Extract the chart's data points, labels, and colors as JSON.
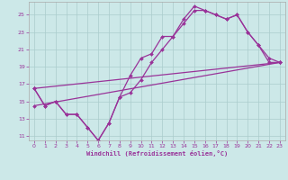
{
  "xlabel": "Windchill (Refroidissement éolien,°C)",
  "background_color": "#cce8e8",
  "grid_color": "#aacccc",
  "line_color": "#993399",
  "xlim": [
    -0.5,
    23.5
  ],
  "ylim": [
    10.5,
    26.5
  ],
  "yticks": [
    11,
    13,
    15,
    17,
    19,
    21,
    23,
    25
  ],
  "xticks": [
    0,
    1,
    2,
    3,
    4,
    5,
    6,
    7,
    8,
    9,
    10,
    11,
    12,
    13,
    14,
    15,
    16,
    17,
    18,
    19,
    20,
    21,
    22,
    23
  ],
  "line1_x": [
    0,
    1,
    2,
    3,
    4,
    5,
    6,
    7,
    8,
    9,
    10,
    11,
    12,
    13,
    14,
    15,
    16,
    17,
    18,
    19,
    20,
    21,
    22,
    23
  ],
  "line1_y": [
    16.5,
    14.5,
    15.0,
    13.5,
    13.5,
    12.0,
    10.5,
    12.5,
    15.5,
    18.0,
    20.0,
    20.5,
    22.5,
    22.5,
    24.5,
    26.0,
    25.5,
    25.0,
    24.5,
    25.0,
    23.0,
    21.5,
    19.5,
    19.5
  ],
  "line2_x": [
    0,
    1,
    2,
    3,
    4,
    5,
    6,
    7,
    8,
    9,
    10,
    11,
    12,
    13,
    14,
    15,
    16,
    17,
    18,
    19,
    20,
    21,
    22,
    23
  ],
  "line2_y": [
    16.5,
    14.5,
    15.0,
    13.5,
    13.5,
    12.0,
    10.5,
    12.5,
    15.5,
    16.0,
    17.5,
    19.5,
    21.0,
    22.5,
    24.0,
    25.5,
    25.5,
    25.0,
    24.5,
    25.0,
    23.0,
    21.5,
    20.0,
    19.5
  ],
  "line3_x": [
    0,
    23
  ],
  "line3_y": [
    14.5,
    19.5
  ],
  "line4_x": [
    0,
    23
  ],
  "line4_y": [
    16.5,
    19.5
  ]
}
